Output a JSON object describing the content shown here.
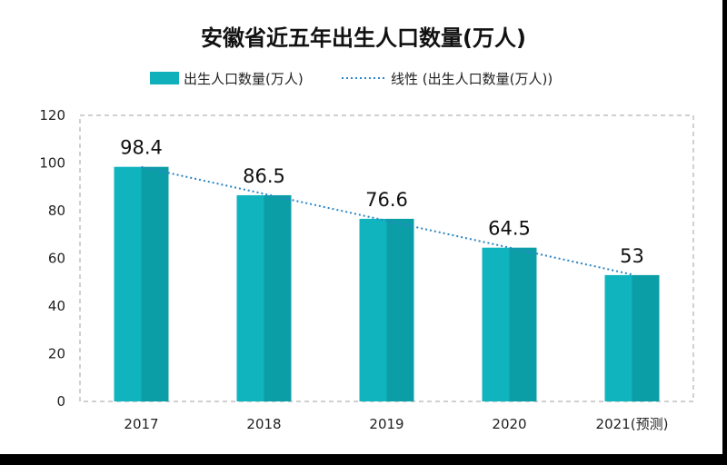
{
  "chart_data": {
    "type": "bar",
    "title": "安徽省近五年出生人口数量(万人)",
    "categories": [
      "2017",
      "2018",
      "2019",
      "2020",
      "2021(预测)"
    ],
    "series": [
      {
        "name": "出生人口数量(万人)",
        "values": [
          98.4,
          86.5,
          76.6,
          64.5,
          53
        ],
        "labels": [
          "98.4",
          "86.5",
          "76.6",
          "64.5",
          "53"
        ]
      }
    ],
    "trendline": {
      "name": "线性 (出生人口数量(万人))",
      "type": "linear",
      "style": "dotted"
    },
    "y_ticks": [
      "0",
      "20",
      "40",
      "60",
      "80",
      "100",
      "120"
    ],
    "ylim": [
      0,
      120
    ],
    "legend_position": "top",
    "grid": false,
    "colors": {
      "bar_light": "#10b4be",
      "bar_dark": "#0c9ea6",
      "trend": "#2a86c4",
      "frame": "#c0c0c0"
    }
  }
}
